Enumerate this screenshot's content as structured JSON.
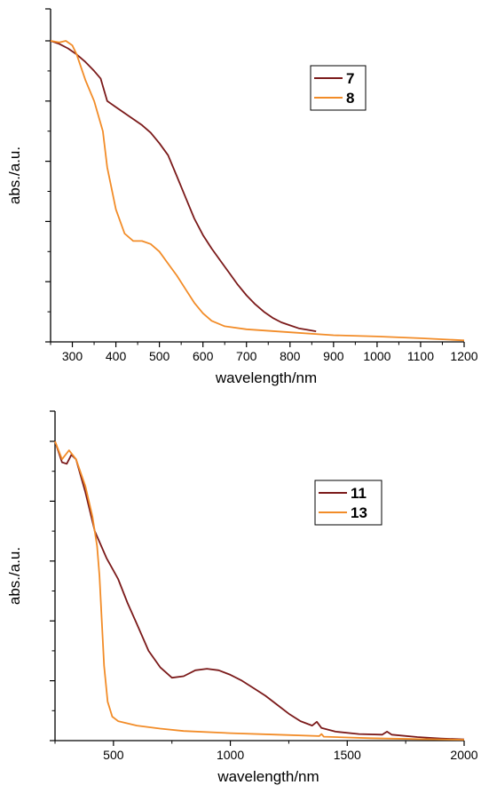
{
  "chart_data": [
    {
      "type": "line",
      "xlabel": "wavelength/nm",
      "ylabel": "abs./a.u.",
      "xlim": [
        250,
        1200
      ],
      "ylim": [
        0,
        1.02
      ],
      "xticks": [
        300,
        400,
        500,
        600,
        700,
        800,
        900,
        1000,
        1100,
        1200
      ],
      "x_minor_ticks": [
        250,
        350,
        450,
        550,
        650,
        750,
        850,
        950,
        1050,
        1150
      ],
      "yticks": [
        0,
        0.2,
        0.4,
        0.6,
        0.8,
        1.0
      ],
      "y_minor_ticks": [
        0.1,
        0.3,
        0.5,
        0.7,
        0.9
      ],
      "y_tick_labels_shown": false,
      "grid": false,
      "legend_position": "top-right",
      "series": [
        {
          "name": "7",
          "color": "#7b1a1a",
          "points": [
            [
              250,
              1.0
            ],
            [
              270,
              0.99
            ],
            [
              290,
              0.975
            ],
            [
              310,
              0.955
            ],
            [
              330,
              0.93
            ],
            [
              350,
              0.9
            ],
            [
              365,
              0.875
            ],
            [
              380,
              0.8
            ],
            [
              400,
              0.78
            ],
            [
              420,
              0.76
            ],
            [
              440,
              0.74
            ],
            [
              460,
              0.72
            ],
            [
              480,
              0.695
            ],
            [
              500,
              0.66
            ],
            [
              520,
              0.62
            ],
            [
              540,
              0.55
            ],
            [
              560,
              0.48
            ],
            [
              580,
              0.41
            ],
            [
              600,
              0.355
            ],
            [
              620,
              0.31
            ],
            [
              640,
              0.27
            ],
            [
              660,
              0.23
            ],
            [
              680,
              0.19
            ],
            [
              700,
              0.155
            ],
            [
              720,
              0.125
            ],
            [
              740,
              0.1
            ],
            [
              760,
              0.08
            ],
            [
              780,
              0.065
            ],
            [
              800,
              0.055
            ],
            [
              820,
              0.045
            ],
            [
              840,
              0.04
            ],
            [
              860,
              0.035
            ]
          ]
        },
        {
          "name": "8",
          "color": "#f28c28",
          "points": [
            [
              250,
              1.0
            ],
            [
              270,
              0.995
            ],
            [
              285,
              1.0
            ],
            [
              300,
              0.985
            ],
            [
              310,
              0.955
            ],
            [
              330,
              0.87
            ],
            [
              350,
              0.8
            ],
            [
              370,
              0.7
            ],
            [
              380,
              0.58
            ],
            [
              400,
              0.44
            ],
            [
              420,
              0.36
            ],
            [
              440,
              0.335
            ],
            [
              460,
              0.335
            ],
            [
              480,
              0.325
            ],
            [
              500,
              0.3
            ],
            [
              520,
              0.26
            ],
            [
              540,
              0.22
            ],
            [
              560,
              0.175
            ],
            [
              580,
              0.13
            ],
            [
              600,
              0.095
            ],
            [
              620,
              0.07
            ],
            [
              650,
              0.052
            ],
            [
              700,
              0.042
            ],
            [
              800,
              0.032
            ],
            [
              900,
              0.022
            ],
            [
              1000,
              0.018
            ],
            [
              1100,
              0.012
            ],
            [
              1200,
              0.005
            ]
          ]
        }
      ]
    },
    {
      "type": "line",
      "xlabel": "wavelength/nm",
      "ylabel": "abs./a.u.",
      "xlim": [
        250,
        2000
      ],
      "ylim": [
        0,
        1.0
      ],
      "xticks": [
        500,
        1000,
        1500,
        2000
      ],
      "x_minor_ticks": [
        250,
        750,
        1250,
        1750
      ],
      "yticks": [
        0,
        0.2,
        0.4,
        0.6,
        0.8,
        1.0
      ],
      "y_minor_ticks": [
        0.1,
        0.3,
        0.5,
        0.7,
        0.9
      ],
      "y_tick_labels_shown": false,
      "grid": false,
      "legend_position": "top-right",
      "series": [
        {
          "name": "11",
          "color": "#7b1a1a",
          "points": [
            [
              250,
              1.0
            ],
            [
              280,
              0.93
            ],
            [
              300,
              0.925
            ],
            [
              320,
              0.955
            ],
            [
              340,
              0.94
            ],
            [
              380,
              0.83
            ],
            [
              420,
              0.7
            ],
            [
              470,
              0.61
            ],
            [
              520,
              0.54
            ],
            [
              560,
              0.46
            ],
            [
              600,
              0.39
            ],
            [
              650,
              0.3
            ],
            [
              700,
              0.245
            ],
            [
              750,
              0.21
            ],
            [
              800,
              0.215
            ],
            [
              850,
              0.235
            ],
            [
              900,
              0.24
            ],
            [
              950,
              0.235
            ],
            [
              1000,
              0.22
            ],
            [
              1050,
              0.2
            ],
            [
              1100,
              0.175
            ],
            [
              1150,
              0.15
            ],
            [
              1200,
              0.12
            ],
            [
              1250,
              0.09
            ],
            [
              1300,
              0.065
            ],
            [
              1350,
              0.05
            ],
            [
              1370,
              0.063
            ],
            [
              1390,
              0.042
            ],
            [
              1450,
              0.03
            ],
            [
              1550,
              0.022
            ],
            [
              1650,
              0.02
            ],
            [
              1670,
              0.03
            ],
            [
              1690,
              0.02
            ],
            [
              1800,
              0.012
            ],
            [
              1900,
              0.007
            ],
            [
              2000,
              0.004
            ]
          ]
        },
        {
          "name": "13",
          "color": "#f28c28",
          "points": [
            [
              250,
              1.0
            ],
            [
              280,
              0.94
            ],
            [
              310,
              0.97
            ],
            [
              340,
              0.94
            ],
            [
              380,
              0.85
            ],
            [
              410,
              0.75
            ],
            [
              430,
              0.65
            ],
            [
              440,
              0.55
            ],
            [
              450,
              0.4
            ],
            [
              460,
              0.25
            ],
            [
              475,
              0.13
            ],
            [
              495,
              0.08
            ],
            [
              520,
              0.065
            ],
            [
              600,
              0.05
            ],
            [
              700,
              0.04
            ],
            [
              800,
              0.032
            ],
            [
              1000,
              0.025
            ],
            [
              1200,
              0.02
            ],
            [
              1380,
              0.015
            ],
            [
              1390,
              0.022
            ],
            [
              1400,
              0.013
            ],
            [
              1600,
              0.008
            ],
            [
              1800,
              0.005
            ],
            [
              2000,
              0.003
            ]
          ]
        }
      ]
    }
  ]
}
